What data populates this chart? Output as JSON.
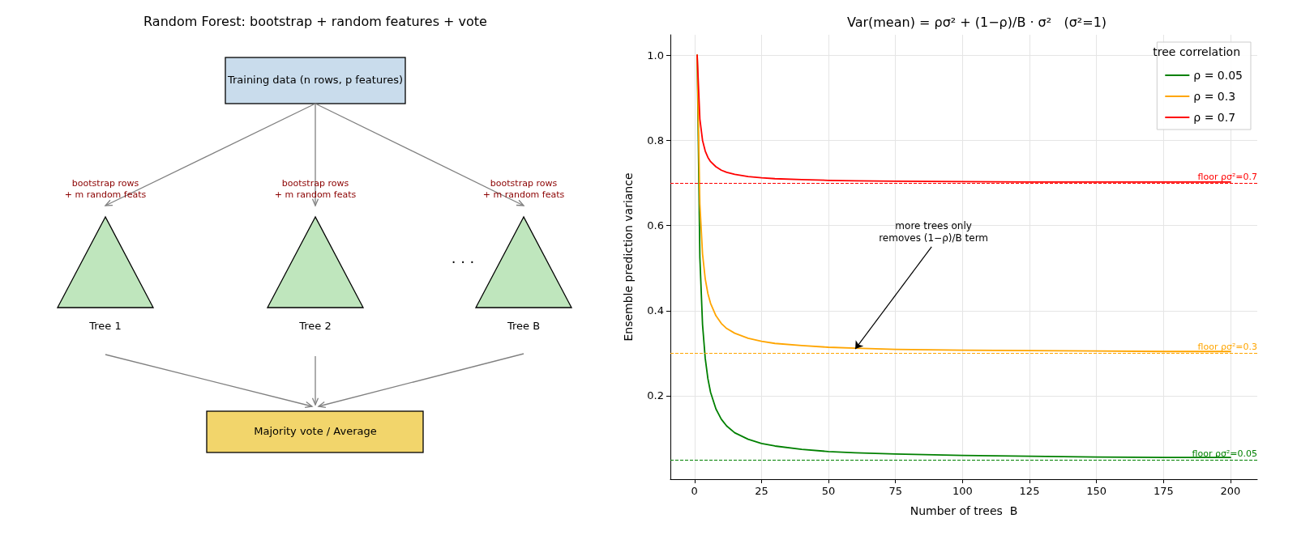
{
  "chart_data": [
    {
      "type": "other",
      "title": "Random Forest: bootstrap + random features + vote",
      "annotations": [
        "Training data (n rows, p features)",
        "bootstrap rows\n+ m random feats",
        "bootstrap rows\n+ m random feats",
        "bootstrap rows\n+ m random feats",
        "Tree 1",
        "Tree 2",
        "Tree B",
        ". . .",
        "Majority vote / Average"
      ]
    },
    {
      "type": "line",
      "title": "Var(mean) = ρσ² + (1−ρ)/B · σ²   (σ²=1)",
      "xlabel": "Number of trees  B",
      "ylabel": "Ensemble prediction variance",
      "legend_title": "tree correlation",
      "x": [
        1,
        2,
        3,
        4,
        5,
        6,
        8,
        10,
        12,
        15,
        20,
        25,
        30,
        40,
        50,
        60,
        75,
        100,
        125,
        150,
        175,
        200
      ],
      "series": [
        {
          "name": "ρ = 0.05",
          "color": "#008000",
          "values": [
            1.0,
            0.525,
            0.367,
            0.288,
            0.24,
            0.208,
            0.169,
            0.145,
            0.129,
            0.113,
            0.098,
            0.088,
            0.082,
            0.074,
            0.069,
            0.066,
            0.063,
            0.06,
            0.058,
            0.056,
            0.055,
            0.055
          ]
        },
        {
          "name": "ρ = 0.3",
          "color": "#ffa500",
          "values": [
            1.0,
            0.65,
            0.533,
            0.475,
            0.44,
            0.417,
            0.388,
            0.37,
            0.358,
            0.347,
            0.335,
            0.328,
            0.323,
            0.318,
            0.314,
            0.312,
            0.309,
            0.307,
            0.306,
            0.305,
            0.304,
            0.304
          ]
        },
        {
          "name": "ρ = 0.7",
          "color": "#ff0000",
          "values": [
            1.0,
            0.85,
            0.8,
            0.775,
            0.76,
            0.75,
            0.738,
            0.73,
            0.725,
            0.72,
            0.715,
            0.712,
            0.71,
            0.708,
            0.706,
            0.705,
            0.704,
            0.703,
            0.702,
            0.702,
            0.702,
            0.702
          ]
        }
      ],
      "xlim": [
        -9,
        210
      ],
      "xticks": [
        0,
        25,
        50,
        75,
        100,
        125,
        150,
        175,
        200
      ],
      "ylim": [
        0.004,
        1.048
      ],
      "yticks": [
        0.2,
        0.4,
        0.6,
        0.8,
        {
          "value": 1,
          "label": "1.0"
        }
      ],
      "ref_lines": [
        {
          "axis": "y",
          "value": 0.05,
          "label": "floor ρσ²=0.05",
          "color": "#008000",
          "line_style": "dashed"
        },
        {
          "axis": "y",
          "value": 0.3,
          "label": "floor ρσ²=0.3",
          "color": "#ffa500",
          "line_style": "dashed"
        },
        {
          "axis": "y",
          "value": 0.7,
          "label": "floor ρσ²=0.7",
          "color": "#ff0000",
          "line_style": "dashed"
        }
      ],
      "annotations": [
        {
          "text": "more trees only\nremoves (1−ρ)/B term",
          "x": 60,
          "y": 0.31
        }
      ],
      "grid": true,
      "legend": "top right",
      "marker": "none",
      "line_style": "solid"
    }
  ]
}
